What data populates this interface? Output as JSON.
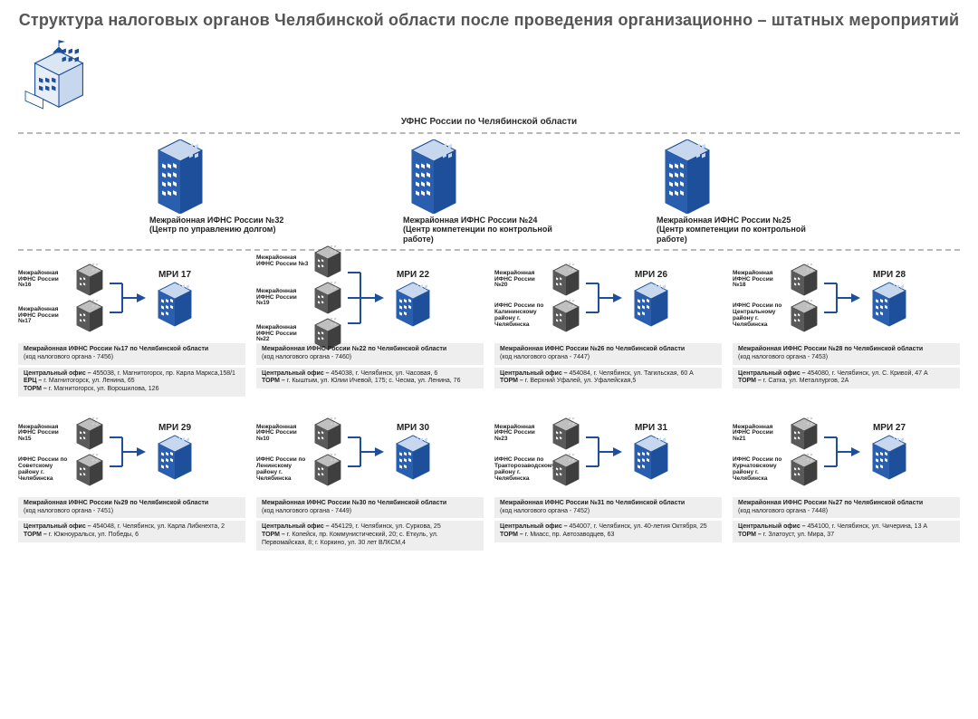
{
  "colors": {
    "blue": "#1e4f9a",
    "dark": "#2f2f2f",
    "grey_bg": "#eeeeee",
    "divider": "#b8b8b8",
    "title": "#555555"
  },
  "title": "Структура налоговых органов Челябинской области после проведения организационно – штатных мероприятий",
  "hq": {
    "label": "УФНС России по Челябинской области"
  },
  "tier2": [
    {
      "title": "Межрайонная ИФНС России №32",
      "sub": "(Центр по управлению долгом)"
    },
    {
      "title": "Межрайонная ИФНС России №24",
      "sub": "(Центр компетенции по контрольной работе)"
    },
    {
      "title": "Межрайонная ИФНС России №25",
      "sub": "(Центр компетенции по контрольной работе)"
    }
  ],
  "cells": [
    {
      "sources": [
        "Межрайонная ИФНС России №16",
        "Межрайонная ИФНС России №17"
      ],
      "result": "МРИ 17",
      "box1_bold": "Межрайонная ИФНС России  №17 по Челябинской области",
      "box1_code": "(код налогового органа - 7456)",
      "box2": "Центральный офис – 455038, г. Магнитогорск, пр. Карла Маркса,158/1\nЕРЦ – г. Магнитогорск, ул. Ленина, 65\nТОРМ – г. Магнитогорск, ул. Ворошилова, 126"
    },
    {
      "sources": [
        "Межрайонная ИФНС России №3",
        "Межрайонная ИФНС России №19",
        "Межрайонная ИФНС России №22"
      ],
      "result": "МРИ 22",
      "box1_bold": "Межрайонная ИФНС России  №22 по Челябинской области",
      "box1_code": "(код налогового органа - 7460)",
      "box2": "Центральный офис – 454038, г. Челябинск, ул. Часовая, 6\nТОРМ – г. Кыштым, ул. Юлии Ичевой, 175; с. Чесма, ул. Ленина, 76"
    },
    {
      "sources": [
        "Межрайонная ИФНС России №20",
        "ИФНС России по Калининскому району г. Челябинска"
      ],
      "result": "МРИ 26",
      "box1_bold": "Межрайонная ИФНС России  №26 по Челябинской области",
      "box1_code": "(код налогового органа - 7447)",
      "box2": "Центральный офис – 454084, г. Челябинск, ул. Тагильская, 60 А\nТОРМ – г. Верхний Уфалей, ул. Уфалейская,5"
    },
    {
      "sources": [
        "Межрайонная ИФНС России №18",
        "ИФНС России по Центральному району г. Челябинска"
      ],
      "result": "МРИ 28",
      "box1_bold": "Межрайонная ИФНС России  №28 по Челябинской области",
      "box1_code": "(код налогового органа - 7453)",
      "box2": "Центральный офис – 454080, г. Челябинск, ул. С. Кривой, 47 А\nТОРМ – г. Сатка, ул. Металлургов,  2А"
    },
    {
      "sources": [
        "Межрайонная ИФНС России №15",
        "ИФНС России по Советскому району г. Челябинска"
      ],
      "result": "МРИ 29",
      "box1_bold": "Межрайонная ИФНС России  №29 по Челябинской области",
      "box1_code": "(код налогового органа - 7451)",
      "box2": "Центральный офис – 454048, г. Челябинск, ул. Карла Либкнехта, 2\nТОРМ – г. Южноуральск, ул. Победы,  6"
    },
    {
      "sources": [
        "Межрайонная ИФНС России №10",
        "ИФНС России по Ленинскому району г. Челябинска"
      ],
      "result": "МРИ 30",
      "box1_bold": "Межрайонная ИФНС России  №30 по Челябинской области",
      "box1_code": "(код налогового органа - 7449)",
      "box2": "Центральный офис – 454129, г. Челябинск, ул. Суркова, 25\nТОРМ – г. Копейск, пр. Коммунистический,  20; с. Еткуль, ул. Первомайская, 8; г. Коркино, ул. 30 лет ВЛКСМ,4"
    },
    {
      "sources": [
        "Межрайонная ИФНС России №23",
        "ИФНС России по Тракторозаводскому району г. Челябинска"
      ],
      "result": "МРИ 31",
      "box1_bold": "Межрайонная ИФНС России  №31 по Челябинской области",
      "box1_code": "(код налогового органа - 7452)",
      "box2": "Центральный офис – 454007, г. Челябинск, ул. 40-летия Октября,  25\nТОРМ – г. Миасс, пр. Автозаводцев,  63"
    },
    {
      "sources": [
        "Межрайонная ИФНС России №21",
        "ИФНС России по Курчатовскому району г. Челябинска"
      ],
      "result": "МРИ 27",
      "box1_bold": "Межрайонная ИФНС России  №27 по Челябинской области",
      "box1_code": "(код налогового органа - 7448)",
      "box2": "Центральный офис – 454100, г. Челябинск, ул. Чичерина, 13 А\nТОРМ – г. Златоуст, ул. Мира, 37"
    }
  ]
}
